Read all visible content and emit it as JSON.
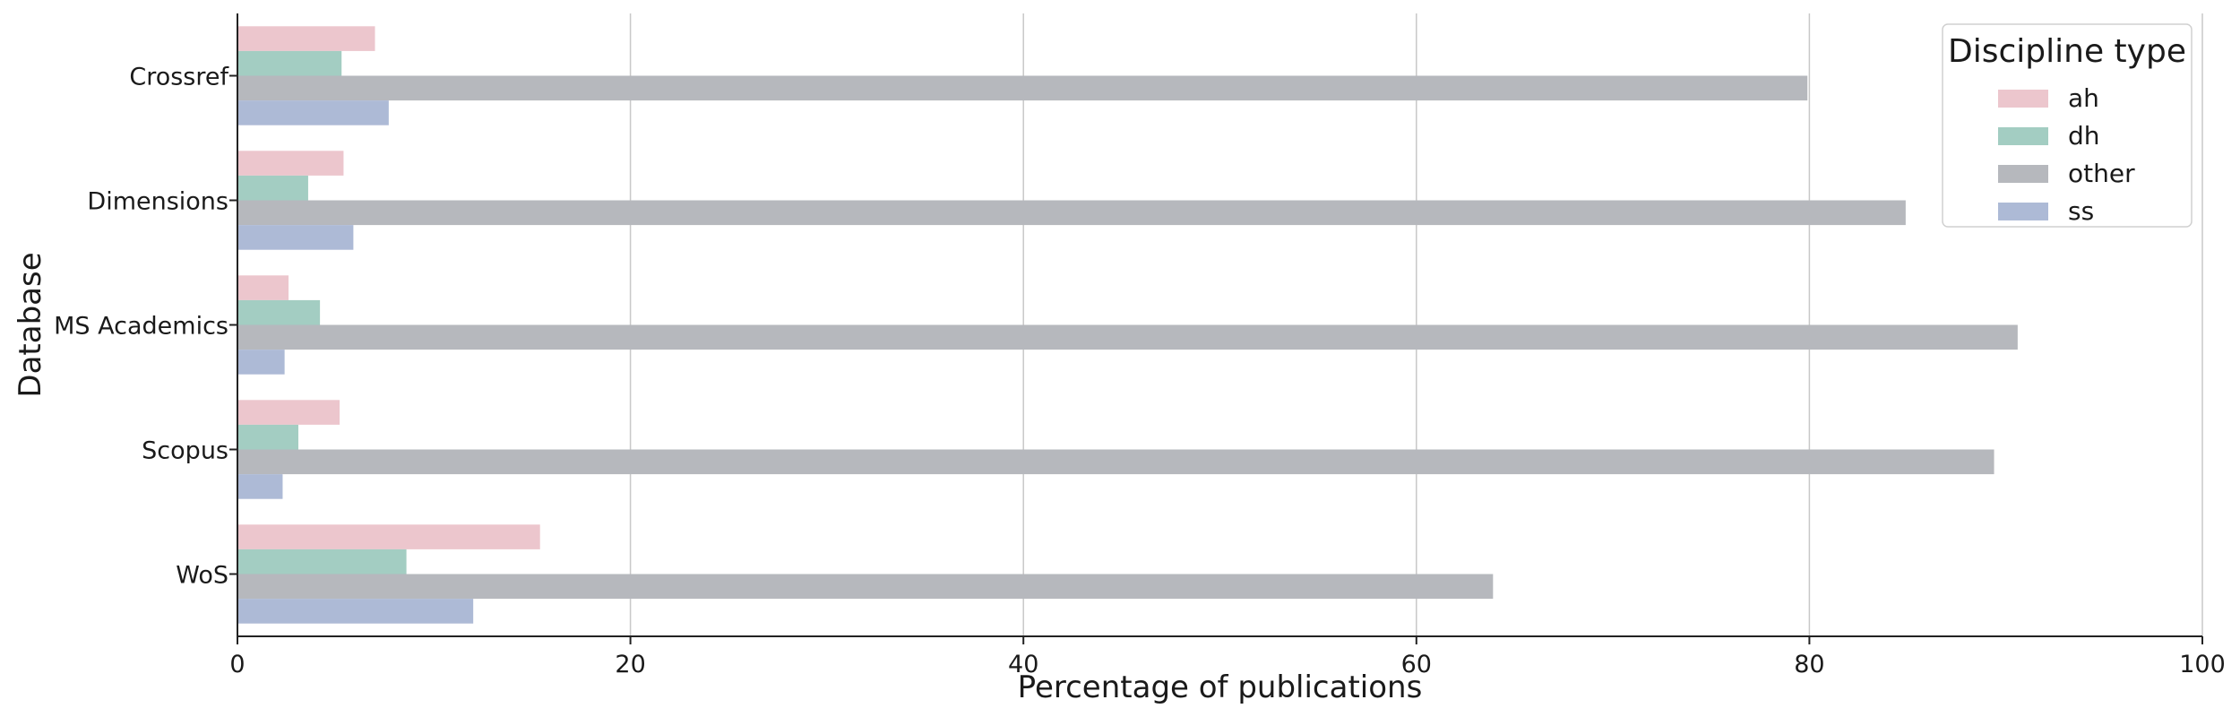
{
  "chart_data": {
    "type": "bar",
    "orientation": "horizontal",
    "title": "",
    "xlabel": "Percentage of publications",
    "ylabel": "Database",
    "xlim": [
      0,
      100
    ],
    "xticks": [
      0,
      20,
      40,
      60,
      80,
      100
    ],
    "grid": "vertical",
    "legend_placement": "top-right",
    "legend_title": "Discipline type",
    "categories": [
      "Crossref",
      "Dimensions",
      "MS Academics",
      "Scopus",
      "WoS"
    ],
    "series": [
      {
        "name": "ah",
        "color": "#ecc6cd",
        "values": [
          7.0,
          5.4,
          2.6,
          5.2,
          15.4
        ]
      },
      {
        "name": "dh",
        "color": "#a3cdc2",
        "values": [
          5.3,
          3.6,
          4.2,
          3.1,
          8.6
        ]
      },
      {
        "name": "other",
        "color": "#b6b8bd",
        "values": [
          79.9,
          84.9,
          90.6,
          89.4,
          63.9
        ]
      },
      {
        "name": "ss",
        "color": "#adbad6",
        "values": [
          7.7,
          5.9,
          2.4,
          2.3,
          12.0
        ]
      }
    ]
  }
}
